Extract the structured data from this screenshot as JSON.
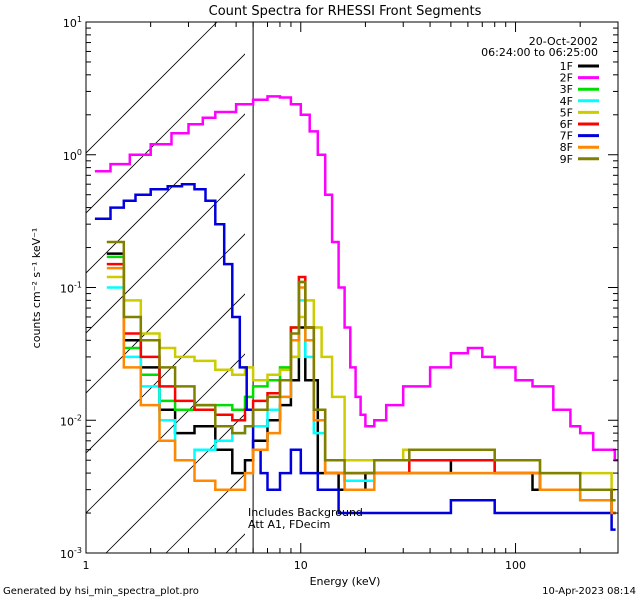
{
  "chart_data": {
    "type": "line",
    "title": "Count Spectra for RHESSI Front Segments",
    "xlabel": "Energy (keV)",
    "ylabel": "counts cm⁻² s⁻¹ keV⁻¹",
    "xscale": "log",
    "yscale": "log",
    "xlim": [
      1,
      300
    ],
    "ylim": [
      0.001,
      10
    ],
    "x_ticks": [
      {
        "value": 1,
        "label": "1"
      },
      {
        "value": 10,
        "label": "10"
      },
      {
        "value": 100,
        "label": "100"
      }
    ],
    "y_ticks": [
      {
        "value": 0.001,
        "base": "10",
        "exp": "-3"
      },
      {
        "value": 0.01,
        "base": "10",
        "exp": "-2"
      },
      {
        "value": 0.1,
        "base": "10",
        "exp": "-1"
      },
      {
        "value": 1,
        "base": "10",
        "exp": "0"
      },
      {
        "value": 10,
        "base": "10",
        "exp": "1"
      }
    ],
    "date": "20-Oct-2002",
    "time_range": "06:24:00 to 06:25:00",
    "shaded_region_xmax": 6,
    "annotation_lines": [
      "Includes Background",
      "Att A1, FDecim"
    ],
    "legend_position": "top-right",
    "series": [
      {
        "name": "1F",
        "color": "#000000",
        "points": [
          [
            1.25,
            0.18
          ],
          [
            1.5,
            0.04
          ],
          [
            1.8,
            0.025
          ],
          [
            2.2,
            0.012
          ],
          [
            2.6,
            0.008
          ],
          [
            3.2,
            0.009
          ],
          [
            4.0,
            0.006
          ],
          [
            4.8,
            0.004
          ],
          [
            5.5,
            0.005
          ],
          [
            6.0,
            0.007
          ],
          [
            7.0,
            0.01
          ],
          [
            8.0,
            0.013
          ],
          [
            9.0,
            0.02
          ],
          [
            9.8,
            0.05
          ],
          [
            10.5,
            0.02
          ],
          [
            12,
            0.004
          ],
          [
            15,
            0.003
          ],
          [
            20,
            0.004
          ],
          [
            30,
            0.004
          ],
          [
            50,
            0.005
          ],
          [
            80,
            0.004
          ],
          [
            120,
            0.003
          ],
          [
            200,
            0.003
          ],
          [
            280,
            0.002
          ]
        ]
      },
      {
        "name": "2F",
        "color": "#ff00ff",
        "points": [
          [
            1.1,
            0.75
          ],
          [
            1.3,
            0.85
          ],
          [
            1.6,
            1.0
          ],
          [
            2.0,
            1.2
          ],
          [
            2.5,
            1.45
          ],
          [
            3.0,
            1.7
          ],
          [
            3.5,
            1.9
          ],
          [
            4.0,
            2.1
          ],
          [
            5.0,
            2.4
          ],
          [
            6.0,
            2.6
          ],
          [
            7.0,
            2.75
          ],
          [
            8.0,
            2.7
          ],
          [
            9.0,
            2.4
          ],
          [
            10,
            2.0
          ],
          [
            11,
            1.5
          ],
          [
            12,
            1.0
          ],
          [
            13,
            0.5
          ],
          [
            14,
            0.22
          ],
          [
            15,
            0.1
          ],
          [
            16,
            0.05
          ],
          [
            17,
            0.025
          ],
          [
            18,
            0.015
          ],
          [
            19,
            0.011
          ],
          [
            20,
            0.009
          ],
          [
            22,
            0.01
          ],
          [
            25,
            0.013
          ],
          [
            30,
            0.018
          ],
          [
            40,
            0.025
          ],
          [
            50,
            0.032
          ],
          [
            60,
            0.035
          ],
          [
            70,
            0.03
          ],
          [
            80,
            0.025
          ],
          [
            100,
            0.02
          ],
          [
            120,
            0.018
          ],
          [
            150,
            0.012
          ],
          [
            180,
            0.009
          ],
          [
            200,
            0.008
          ],
          [
            230,
            0.006
          ],
          [
            260,
            0.006
          ],
          [
            290,
            0.005
          ]
        ]
      },
      {
        "name": "3F",
        "color": "#00dd00",
        "points": [
          [
            1.25,
            0.17
          ],
          [
            1.5,
            0.035
          ],
          [
            1.8,
            0.022
          ],
          [
            2.2,
            0.014
          ],
          [
            2.6,
            0.012
          ],
          [
            3.2,
            0.013
          ],
          [
            4.0,
            0.013
          ],
          [
            4.8,
            0.012
          ],
          [
            5.5,
            0.015
          ],
          [
            6.0,
            0.018
          ],
          [
            7.0,
            0.02
          ],
          [
            8.0,
            0.025
          ],
          [
            9.0,
            0.05
          ],
          [
            9.8,
            0.11
          ],
          [
            10.5,
            0.05
          ],
          [
            11.5,
            0.01
          ],
          [
            13,
            0.004
          ],
          [
            16,
            0.0035
          ],
          [
            22,
            0.004
          ],
          [
            32,
            0.005
          ],
          [
            50,
            0.005
          ],
          [
            80,
            0.004
          ],
          [
            130,
            0.003
          ],
          [
            200,
            0.0025
          ],
          [
            280,
            0.002
          ]
        ]
      },
      {
        "name": "4F",
        "color": "#00ffff",
        "points": [
          [
            1.25,
            0.1
          ],
          [
            1.5,
            0.03
          ],
          [
            1.8,
            0.018
          ],
          [
            2.2,
            0.01
          ],
          [
            2.6,
            0.005
          ],
          [
            3.2,
            0.006
          ],
          [
            4.0,
            0.007
          ],
          [
            4.8,
            0.008
          ],
          [
            5.5,
            0.009
          ],
          [
            6.0,
            0.009
          ],
          [
            7.0,
            0.012
          ],
          [
            8.0,
            0.015
          ],
          [
            9.0,
            0.03
          ],
          [
            9.8,
            0.08
          ],
          [
            10.5,
            0.03
          ],
          [
            11.5,
            0.008
          ],
          [
            13,
            0.004
          ],
          [
            16,
            0.0035
          ],
          [
            22,
            0.004
          ],
          [
            32,
            0.004
          ],
          [
            50,
            0.004
          ],
          [
            80,
            0.004
          ],
          [
            130,
            0.003
          ],
          [
            200,
            0.0025
          ],
          [
            280,
            0.002
          ]
        ]
      },
      {
        "name": "5F",
        "color": "#cccc00",
        "points": [
          [
            1.25,
            0.12
          ],
          [
            1.5,
            0.08
          ],
          [
            1.8,
            0.045
          ],
          [
            2.2,
            0.035
          ],
          [
            2.6,
            0.03
          ],
          [
            3.2,
            0.028
          ],
          [
            4.0,
            0.024
          ],
          [
            4.8,
            0.022
          ],
          [
            5.5,
            0.025
          ],
          [
            6.0,
            0.02
          ],
          [
            7.0,
            0.022
          ],
          [
            8.0,
            0.024
          ],
          [
            9.0,
            0.03
          ],
          [
            9.8,
            0.06
          ],
          [
            10.5,
            0.08
          ],
          [
            11.5,
            0.05
          ],
          [
            12.5,
            0.03
          ],
          [
            14,
            0.015
          ],
          [
            16,
            0.005
          ],
          [
            20,
            0.005
          ],
          [
            30,
            0.006
          ],
          [
            50,
            0.006
          ],
          [
            80,
            0.005
          ],
          [
            130,
            0.004
          ],
          [
            200,
            0.004
          ],
          [
            280,
            0.003
          ]
        ]
      },
      {
        "name": "6F",
        "color": "#ff0000",
        "points": [
          [
            1.25,
            0.15
          ],
          [
            1.5,
            0.045
          ],
          [
            1.8,
            0.03
          ],
          [
            2.2,
            0.018
          ],
          [
            2.6,
            0.014
          ],
          [
            3.2,
            0.012
          ],
          [
            4.0,
            0.011
          ],
          [
            4.8,
            0.01
          ],
          [
            5.5,
            0.012
          ],
          [
            6.0,
            0.014
          ],
          [
            7.0,
            0.016
          ],
          [
            8.0,
            0.02
          ],
          [
            9.0,
            0.05
          ],
          [
            9.8,
            0.12
          ],
          [
            10.5,
            0.05
          ],
          [
            11.5,
            0.012
          ],
          [
            13,
            0.004
          ],
          [
            16,
            0.004
          ],
          [
            22,
            0.004
          ],
          [
            32,
            0.005
          ],
          [
            50,
            0.005
          ],
          [
            80,
            0.004
          ],
          [
            130,
            0.003
          ],
          [
            200,
            0.003
          ],
          [
            280,
            0.002
          ]
        ]
      },
      {
        "name": "7F",
        "color": "#0000dd",
        "points": [
          [
            1.1,
            0.33
          ],
          [
            1.3,
            0.4
          ],
          [
            1.5,
            0.45
          ],
          [
            1.7,
            0.5
          ],
          [
            2.0,
            0.55
          ],
          [
            2.4,
            0.58
          ],
          [
            2.8,
            0.6
          ],
          [
            3.2,
            0.55
          ],
          [
            3.6,
            0.45
          ],
          [
            4.0,
            0.3
          ],
          [
            4.4,
            0.15
          ],
          [
            4.8,
            0.06
          ],
          [
            5.2,
            0.025
          ],
          [
            5.6,
            0.012
          ],
          [
            6.0,
            0.006
          ],
          [
            6.5,
            0.004
          ],
          [
            7.0,
            0.003
          ],
          [
            8.0,
            0.004
          ],
          [
            9.0,
            0.006
          ],
          [
            10,
            0.004
          ],
          [
            12,
            0.003
          ],
          [
            15,
            0.002
          ],
          [
            20,
            0.002
          ],
          [
            30,
            0.002
          ],
          [
            50,
            0.0025
          ],
          [
            80,
            0.002
          ],
          [
            130,
            0.002
          ],
          [
            200,
            0.002
          ],
          [
            280,
            0.0015
          ]
        ]
      },
      {
        "name": "8F",
        "color": "#ff8800",
        "points": [
          [
            1.25,
            0.14
          ],
          [
            1.5,
            0.025
          ],
          [
            1.8,
            0.013
          ],
          [
            2.2,
            0.007
          ],
          [
            2.6,
            0.005
          ],
          [
            3.2,
            0.0035
          ],
          [
            4.0,
            0.003
          ],
          [
            4.8,
            0.003
          ],
          [
            5.5,
            0.004
          ],
          [
            6.0,
            0.006
          ],
          [
            7.0,
            0.008
          ],
          [
            8.0,
            0.015
          ],
          [
            9.0,
            0.04
          ],
          [
            9.8,
            0.1
          ],
          [
            10.5,
            0.04
          ],
          [
            11.5,
            0.01
          ],
          [
            13,
            0.004
          ],
          [
            16,
            0.003
          ],
          [
            22,
            0.004
          ],
          [
            32,
            0.004
          ],
          [
            50,
            0.004
          ],
          [
            80,
            0.004
          ],
          [
            130,
            0.003
          ],
          [
            200,
            0.0025
          ],
          [
            280,
            0.002
          ]
        ]
      },
      {
        "name": "9F",
        "color": "#808000",
        "points": [
          [
            1.25,
            0.22
          ],
          [
            1.5,
            0.06
          ],
          [
            1.8,
            0.04
          ],
          [
            2.2,
            0.025
          ],
          [
            2.6,
            0.018
          ],
          [
            3.2,
            0.013
          ],
          [
            4.0,
            0.009
          ],
          [
            4.8,
            0.008
          ],
          [
            5.5,
            0.009
          ],
          [
            6.0,
            0.012
          ],
          [
            7.0,
            0.015
          ],
          [
            8.0,
            0.02
          ],
          [
            9.0,
            0.045
          ],
          [
            9.8,
            0.11
          ],
          [
            10.5,
            0.05
          ],
          [
            11.5,
            0.012
          ],
          [
            13,
            0.005
          ],
          [
            16,
            0.004
          ],
          [
            22,
            0.005
          ],
          [
            32,
            0.006
          ],
          [
            50,
            0.006
          ],
          [
            80,
            0.005
          ],
          [
            130,
            0.004
          ],
          [
            200,
            0.003
          ],
          [
            280,
            0.0025
          ]
        ]
      }
    ]
  },
  "footer": {
    "left": "Generated by hsi_min_spectra_plot.pro",
    "right": "10-Apr-2023 08:14"
  }
}
